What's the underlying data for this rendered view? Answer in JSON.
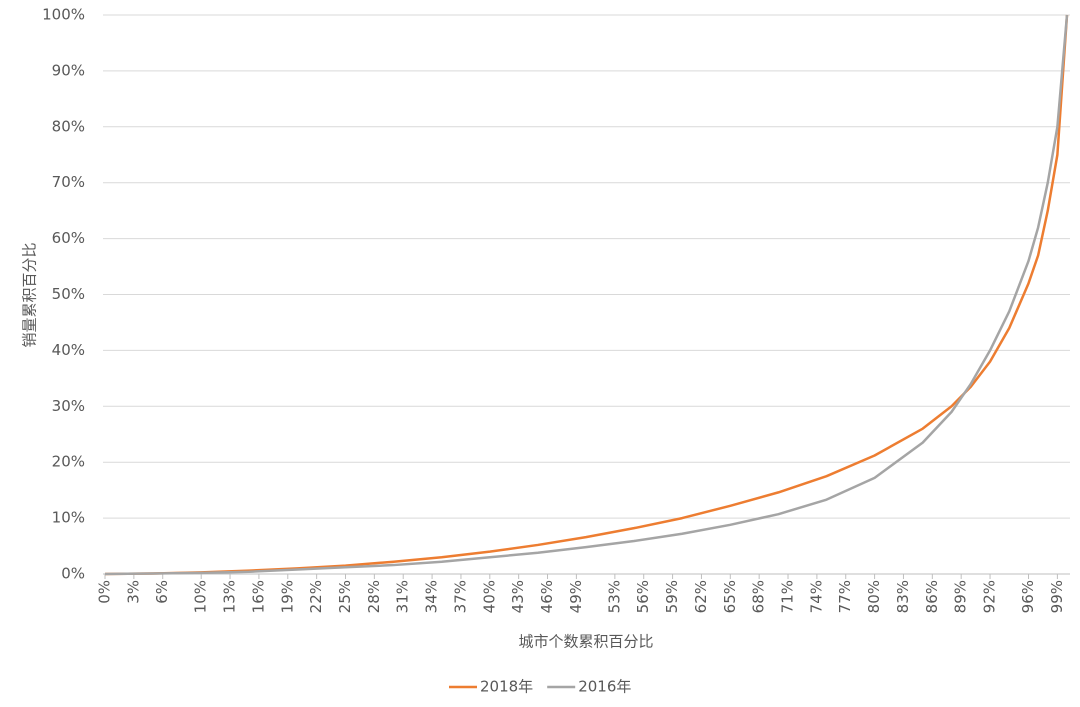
{
  "chart_data": {
    "type": "line",
    "x_label": "城市个数累积百分比",
    "y_label": "销量累积百分比",
    "x": [
      0,
      5,
      10,
      15,
      20,
      25,
      30,
      35,
      40,
      45,
      50,
      55,
      60,
      65,
      70,
      75,
      80,
      85,
      88,
      90,
      92,
      94,
      96,
      97,
      98,
      99,
      100
    ],
    "series": [
      {
        "name": "2018年",
        "color": "#ed7d31",
        "values": [
          0,
          0.1,
          0.3,
          0.6,
          1.0,
          1.5,
          2.2,
          3.0,
          4.0,
          5.2,
          6.6,
          8.2,
          10.0,
          12.2,
          14.6,
          17.5,
          21.2,
          26.0,
          30.0,
          33.5,
          38.0,
          44.0,
          52.0,
          57.0,
          65.0,
          75.0,
          100
        ]
      },
      {
        "name": "2016年",
        "color": "#a5a5a5",
        "values": [
          0,
          0.1,
          0.2,
          0.4,
          0.8,
          1.2,
          1.6,
          2.2,
          3.0,
          3.8,
          4.8,
          5.9,
          7.2,
          8.8,
          10.7,
          13.3,
          17.2,
          23.5,
          29.0,
          34.0,
          40.0,
          47.0,
          56.0,
          62.0,
          70.0,
          80.0,
          100
        ]
      }
    ],
    "xlim": [
      0,
      100
    ],
    "xticks": [
      {
        "value": 0,
        "label": "0%"
      },
      {
        "value": 3,
        "label": "3%"
      },
      {
        "value": 6,
        "label": "6%"
      },
      {
        "value": 10,
        "label": "10%"
      },
      {
        "value": 13,
        "label": "13%"
      },
      {
        "value": 16,
        "label": "16%"
      },
      {
        "value": 19,
        "label": "19%"
      },
      {
        "value": 22,
        "label": "22%"
      },
      {
        "value": 25,
        "label": "25%"
      },
      {
        "value": 28,
        "label": "28%"
      },
      {
        "value": 31,
        "label": "31%"
      },
      {
        "value": 34,
        "label": "34%"
      },
      {
        "value": 37,
        "label": "37%"
      },
      {
        "value": 40,
        "label": "40%"
      },
      {
        "value": 43,
        "label": "43%"
      },
      {
        "value": 46,
        "label": "46%"
      },
      {
        "value": 49,
        "label": "49%"
      },
      {
        "value": 53,
        "label": "53%"
      },
      {
        "value": 56,
        "label": "56%"
      },
      {
        "value": 59,
        "label": "59%"
      },
      {
        "value": 62,
        "label": "62%"
      },
      {
        "value": 65,
        "label": "65%"
      },
      {
        "value": 68,
        "label": "68%"
      },
      {
        "value": 71,
        "label": "71%"
      },
      {
        "value": 74,
        "label": "74%"
      },
      {
        "value": 77,
        "label": "77%"
      },
      {
        "value": 80,
        "label": "80%"
      },
      {
        "value": 83,
        "label": "83%"
      },
      {
        "value": 86,
        "label": "86%"
      },
      {
        "value": 89,
        "label": "89%"
      },
      {
        "value": 92,
        "label": "92%"
      },
      {
        "value": 96,
        "label": "96%"
      },
      {
        "value": 99,
        "label": "99%"
      }
    ],
    "ylim": [
      0,
      100
    ],
    "yticks": [
      {
        "value": 0,
        "label": "0%"
      },
      {
        "value": 10,
        "label": "10%"
      },
      {
        "value": 20,
        "label": "20%"
      },
      {
        "value": 30,
        "label": "30%"
      },
      {
        "value": 40,
        "label": "40%"
      },
      {
        "value": 50,
        "label": "50%"
      },
      {
        "value": 60,
        "label": "60%"
      },
      {
        "value": 70,
        "label": "70%"
      },
      {
        "value": 80,
        "label": "80%"
      },
      {
        "value": 90,
        "label": "90%"
      },
      {
        "value": 100,
        "label": "100%"
      }
    ],
    "grid": true,
    "legend": "bottom"
  }
}
